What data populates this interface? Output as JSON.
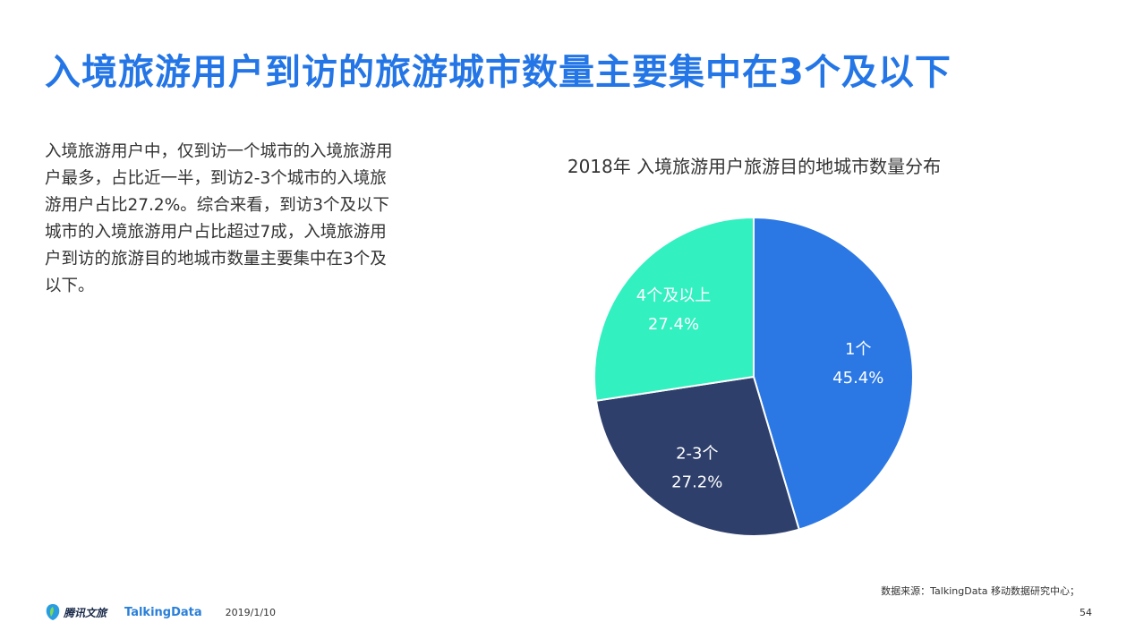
{
  "page": {
    "title": "入境旅游用户到访的旅游城市数量主要集中在3个及以下",
    "description": "入境旅游用户中，仅到访一个城市的入境旅游用户最多，占比近一半，到访2-3个城市的入境旅游用户占比27.2%。综合来看，到访3个及以下城市的入境旅游用户占比超过7成，入境旅游用户到访的旅游目的地城市数量主要集中在3个及以下。",
    "source": "数据来源：TalkingData 移动数据研究中心；",
    "date": "2019/1/10",
    "page_number": "54"
  },
  "logos": {
    "tencent_culture_travel": "腾讯文旅",
    "talkingdata": "TalkingData"
  },
  "chart_data": {
    "type": "pie",
    "title": "2018年 入境旅游用户旅游目的地城市数量分布",
    "start_angle_deg": 0,
    "direction": "clockwise",
    "slices": [
      {
        "label": "1个",
        "value": 45.4,
        "value_label": "45.4%",
        "color": "#2b78e4"
      },
      {
        "label": "2-3个",
        "value": 27.2,
        "value_label": "27.2%",
        "color": "#2e3f6b"
      },
      {
        "label": "4个及以上",
        "value": 27.4,
        "value_label": "27.4%",
        "color": "#32f0c0"
      }
    ]
  }
}
